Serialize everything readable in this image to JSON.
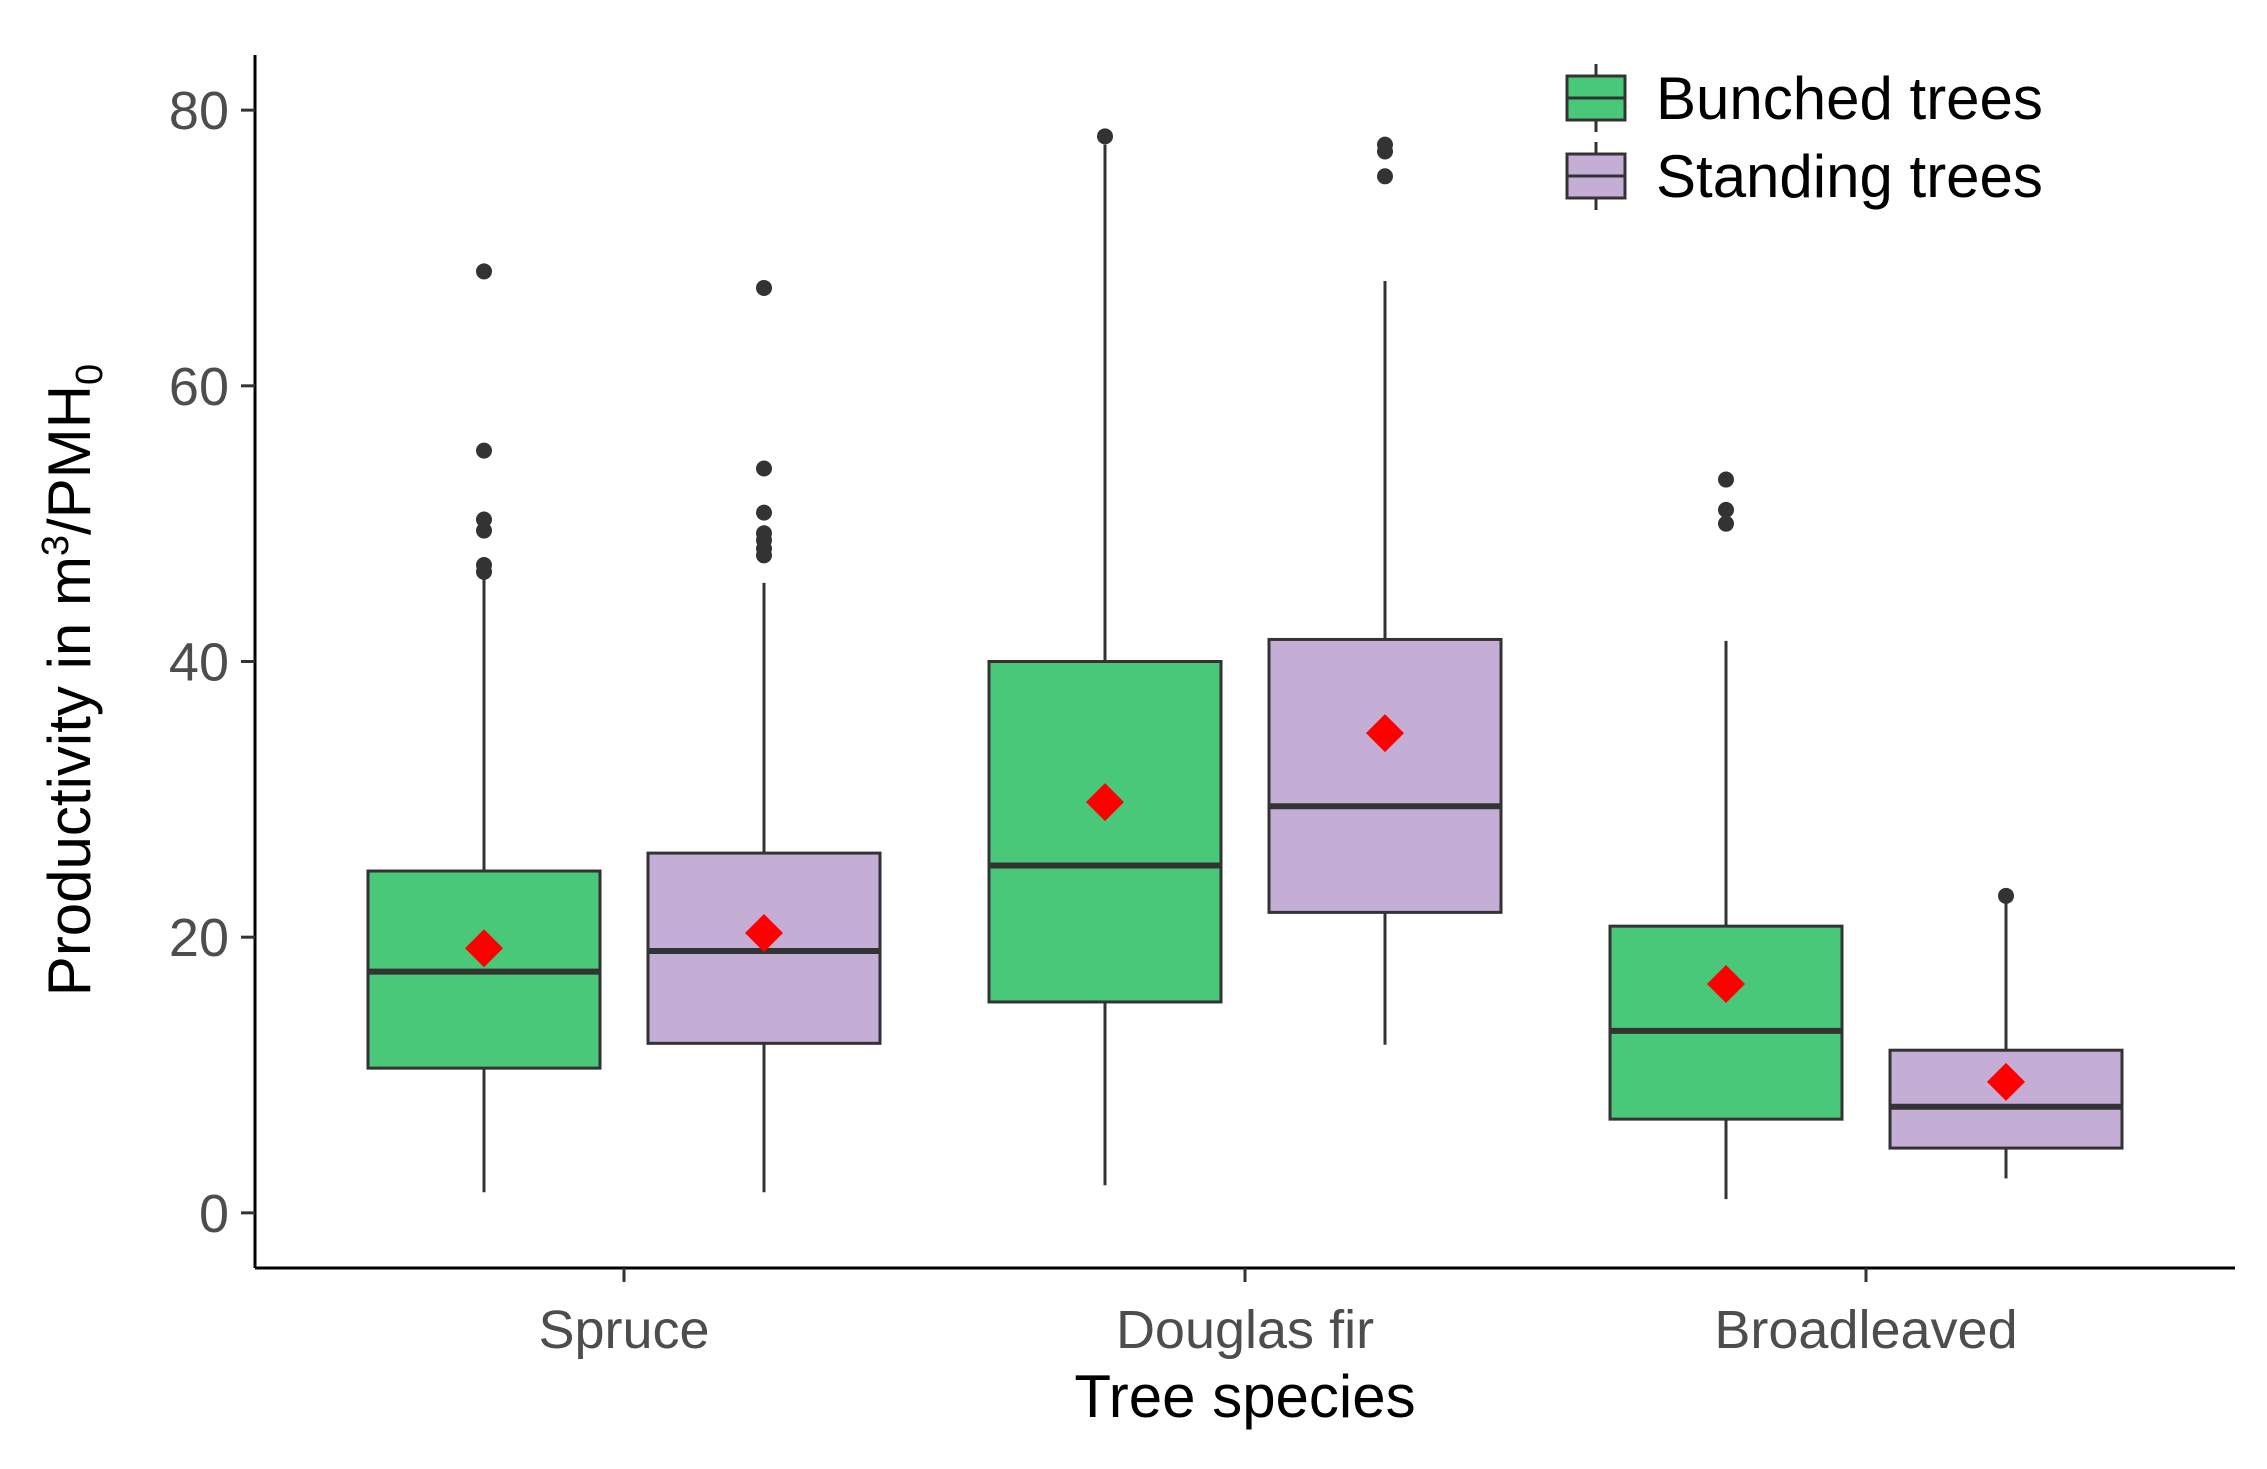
{
  "chart_data": {
    "type": "boxplot",
    "title": "",
    "xlabel": "Tree species",
    "ylabel_main": "Productivity in m",
    "ylabel_sup": "3",
    "ylabel_mid": "/PMH",
    "ylabel_sub": "0",
    "categories": [
      "Spruce",
      "Douglas fir",
      "Broadleaved"
    ],
    "ylim": [
      -4,
      84
    ],
    "yticks": [
      0,
      20,
      40,
      60,
      80
    ],
    "grid": false,
    "legend_position": "top-right",
    "mean_color": "#ff0000",
    "series": [
      {
        "name": "Bunched trees",
        "color": "#48c878",
        "boxes": [
          {
            "whisker_low": 1.5,
            "q1": 10.5,
            "median": 17.5,
            "q3": 24.8,
            "whisker_high": 46,
            "mean": 19.2,
            "outliers": [
              46.5,
              47,
              49.5,
              50.3,
              55.3,
              68.3
            ]
          },
          {
            "whisker_low": 2,
            "q1": 15.3,
            "median": 25.2,
            "q3": 40,
            "whisker_high": 77.5,
            "mean": 29.8,
            "outliers": [
              78.1
            ]
          },
          {
            "whisker_low": 1,
            "q1": 6.8,
            "median": 13.2,
            "q3": 20.8,
            "whisker_high": 41.5,
            "mean": 16.6,
            "outliers": [
              50,
              51,
              53.2
            ]
          }
        ]
      },
      {
        "name": "Standing trees",
        "color": "#c4aed6",
        "boxes": [
          {
            "whisker_low": 1.5,
            "q1": 12.3,
            "median": 19,
            "q3": 26.1,
            "whisker_high": 45.7,
            "mean": 20.3,
            "outliers": [
              47.7,
              48.2,
              48.8,
              49.3,
              50.8,
              54,
              67.1
            ]
          },
          {
            "whisker_low": 12.2,
            "q1": 21.8,
            "median": 29.5,
            "q3": 41.6,
            "whisker_high": 67.6,
            "mean": 34.8,
            "outliers": [
              75.2,
              77,
              77.5
            ]
          },
          {
            "whisker_low": 2.5,
            "q1": 4.7,
            "median": 7.7,
            "q3": 11.8,
            "whisker_high": 22.8,
            "mean": 9.5,
            "outliers": [
              23
            ]
          }
        ]
      }
    ]
  }
}
